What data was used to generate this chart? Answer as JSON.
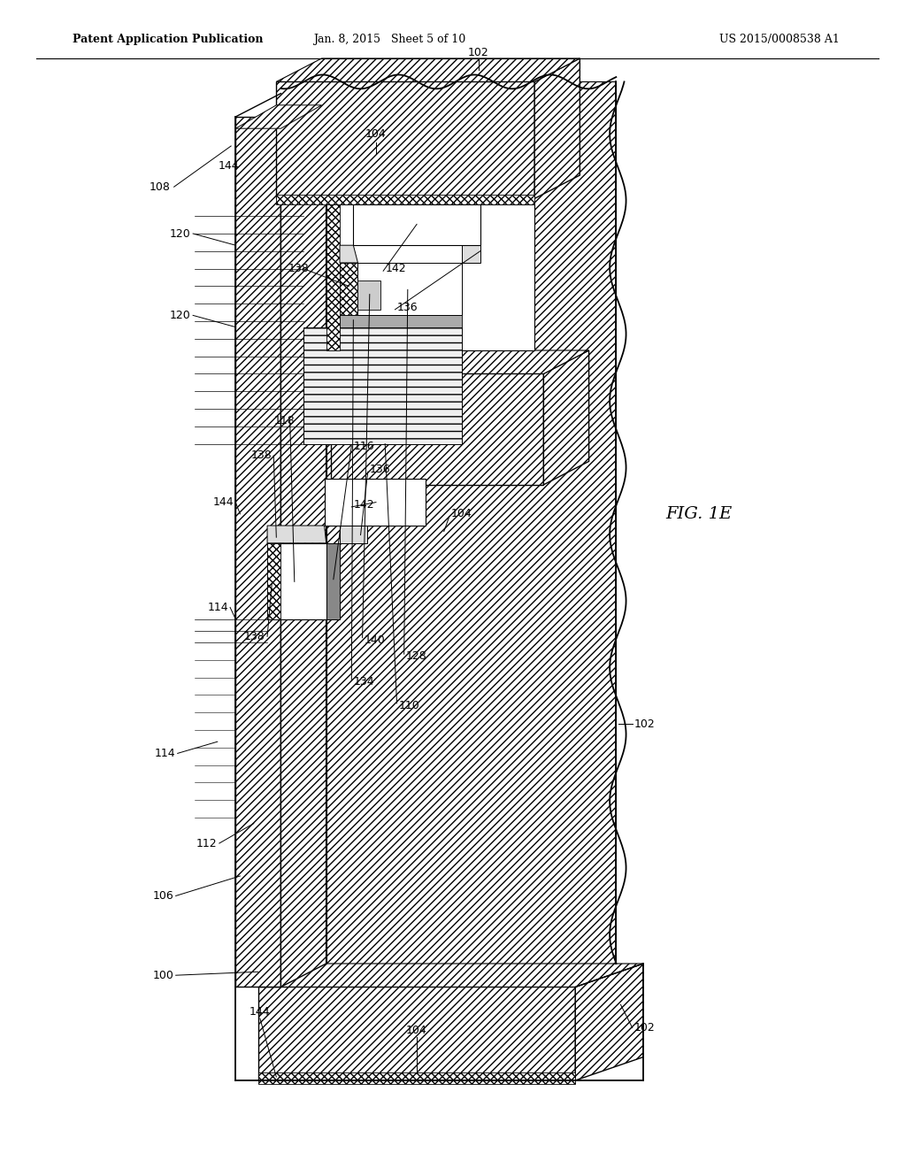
{
  "title_left": "Patent Application Publication",
  "title_mid": "Jan. 8, 2015   Sheet 5 of 10",
  "title_right": "US 2015/0008538 A1",
  "fig_label": "FIG. 1E",
  "background": "#ffffff"
}
